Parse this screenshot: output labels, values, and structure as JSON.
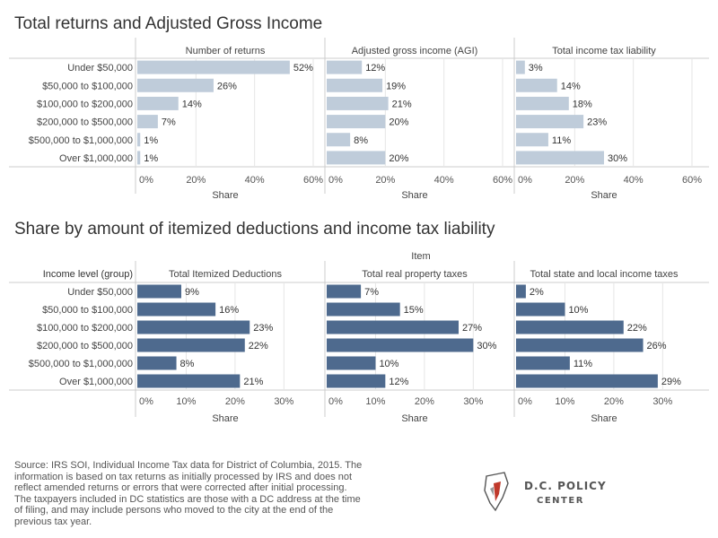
{
  "charts_block_1": {
    "title": "Total returns and Adjusted Gross Income"
  },
  "charts_block_2": {
    "title": "Share by amount of itemized deductions and income tax liability",
    "item_header": "Item",
    "row_header": "Income level (group)"
  },
  "colors": {
    "top_bar": "#bfccda",
    "bottom_bar": "#4e6a8e",
    "grid": "#e6e6e6",
    "axis": "#cccccc"
  },
  "chart_data": [
    {
      "type": "bar",
      "orientation": "horizontal",
      "title": "Number of returns",
      "categories": [
        "Under $50,000",
        "$50,000 to $100,000",
        "$100,000 to $200,000",
        "$200,000 to $500,000",
        "$500,000 to $1,000,000",
        "Over $1,000,000"
      ],
      "values": [
        52,
        26,
        14,
        7,
        1,
        1
      ],
      "xlabel": "Share",
      "xlim": [
        0,
        60
      ],
      "ticks": [
        "0%",
        "20%",
        "40%",
        "60%"
      ],
      "tick_values": [
        0,
        20,
        40,
        60
      ]
    },
    {
      "type": "bar",
      "orientation": "horizontal",
      "title": "Adjusted gross income (AGI)",
      "categories": [
        "Under $50,000",
        "$50,000 to $100,000",
        "$100,000 to $200,000",
        "$200,000 to $500,000",
        "$500,000 to $1,000,000",
        "Over $1,000,000"
      ],
      "values": [
        12,
        19,
        21,
        20,
        8,
        20
      ],
      "xlabel": "Share",
      "xlim": [
        0,
        60
      ],
      "ticks": [
        "0%",
        "20%",
        "40%",
        "60%"
      ],
      "tick_values": [
        0,
        20,
        40,
        60
      ]
    },
    {
      "type": "bar",
      "orientation": "horizontal",
      "title": "Total income tax liability",
      "categories": [
        "Under $50,000",
        "$50,000 to $100,000",
        "$100,000 to $200,000",
        "$200,000 to $500,000",
        "$500,000 to $1,000,000",
        "Over $1,000,000"
      ],
      "values": [
        3,
        14,
        18,
        23,
        11,
        30
      ],
      "xlabel": "Share",
      "xlim": [
        0,
        60
      ],
      "ticks": [
        "0%",
        "20%",
        "40%",
        "60%"
      ],
      "tick_values": [
        0,
        20,
        40,
        60
      ]
    },
    {
      "type": "bar",
      "orientation": "horizontal",
      "title": "Total Itemized Deductions",
      "categories": [
        "Under $50,000",
        "$50,000 to $100,000",
        "$100,000 to $200,000",
        "$200,000 to $500,000",
        "$500,000 to $1,000,000",
        "Over $1,000,000"
      ],
      "values": [
        9,
        16,
        23,
        22,
        8,
        21
      ],
      "xlabel": "Share",
      "xlim": [
        0,
        36
      ],
      "ticks": [
        "0%",
        "10%",
        "20%",
        "30%"
      ],
      "tick_values": [
        0,
        10,
        20,
        30
      ]
    },
    {
      "type": "bar",
      "orientation": "horizontal",
      "title": "Total real property taxes",
      "categories": [
        "Under $50,000",
        "$50,000 to $100,000",
        "$100,000 to $200,000",
        "$200,000 to $500,000",
        "$500,000 to $1,000,000",
        "Over $1,000,000"
      ],
      "values": [
        7,
        15,
        27,
        30,
        10,
        12
      ],
      "xlabel": "Share",
      "xlim": [
        0,
        36
      ],
      "ticks": [
        "0%",
        "10%",
        "20%",
        "30%"
      ],
      "tick_values": [
        0,
        10,
        20,
        30
      ]
    },
    {
      "type": "bar",
      "orientation": "horizontal",
      "title": "Total state and local income taxes",
      "categories": [
        "Under $50,000",
        "$50,000 to $100,000",
        "$100,000 to $200,000",
        "$200,000 to $500,000",
        "$500,000 to $1,000,000",
        "Over $1,000,000"
      ],
      "values": [
        2,
        10,
        22,
        26,
        11,
        29
      ],
      "xlabel": "Share",
      "xlim": [
        0,
        36
      ],
      "ticks": [
        "0%",
        "10%",
        "20%",
        "30%"
      ],
      "tick_values": [
        0,
        10,
        20,
        30
      ]
    }
  ],
  "source_note": "Source: IRS SOI, Individual Income Tax data for District of Columbia, 2015. The information is based on tax returns as initially processed by IRS and does not reflect amended returns or errors that were corrected after initial processing. The taxpayers included in DC statistics are those with a DC address at the time of filing, and may include persons who moved to the city at the end of the previous tax year.",
  "logo": {
    "line1": "D.C. POLICY",
    "line2": "CENTER",
    "icon": "dc-map-icon"
  }
}
